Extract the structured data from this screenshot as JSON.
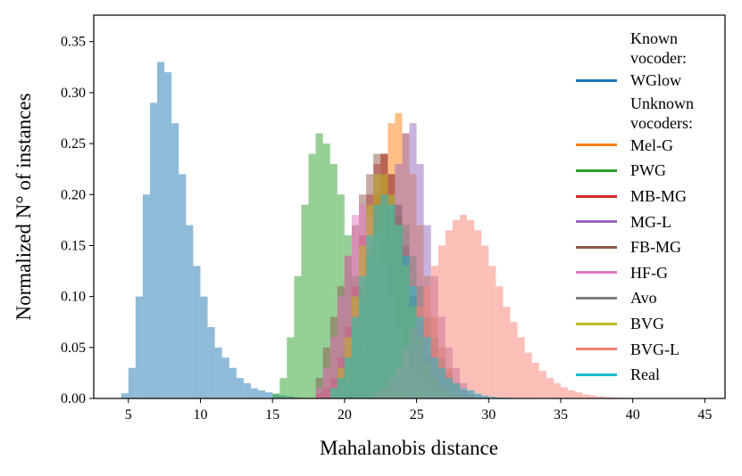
{
  "chart_data": {
    "type": "histogram",
    "xlabel": "Mahalanobis distance",
    "ylabel": "Normalized N° of instances",
    "xlim": [
      2.6,
      46.4
    ],
    "ylim": [
      0,
      0.376
    ],
    "xticks": [
      5,
      10,
      15,
      20,
      25,
      30,
      35,
      40,
      45
    ],
    "yticks": [
      {
        "value": 0,
        "label": "0.00"
      },
      0.05,
      {
        "value": 0.1,
        "label": "0.10"
      },
      0.15,
      {
        "value": 0.2,
        "label": "0.20"
      },
      0.25,
      {
        "value": 0.3,
        "label": "0.30"
      },
      0.35
    ],
    "alpha": 0.5,
    "groups": [
      {
        "title": "Known vocoder:",
        "series": [
          {
            "name": "WGlow",
            "color": "#1f77b4",
            "bins": [
              4.5,
              5,
              5.5,
              6,
              6.5,
              7,
              7.5,
              8,
              8.5,
              9,
              9.5,
              10,
              10.5,
              11,
              11.5,
              12,
              12.5,
              13,
              13.5,
              14,
              14.5,
              15,
              15.5,
              16,
              16.5,
              17
            ],
            "values": [
              0.005,
              0.03,
              0.1,
              0.2,
              0.29,
              0.33,
              0.32,
              0.27,
              0.22,
              0.17,
              0.13,
              0.1,
              0.07,
              0.05,
              0.04,
              0.03,
              0.02,
              0.015,
              0.01,
              0.008,
              0.006,
              0.004,
              0.003,
              0.002,
              0.001
            ]
          }
        ]
      },
      {
        "title": "Unknown vocoders:",
        "series": [
          {
            "name": "Mel-G",
            "color": "#ff7f0e",
            "bins": [
              19,
              19.5,
              20,
              20.5,
              21,
              21.5,
              22,
              22.5,
              23,
              23.5,
              24,
              24.5,
              25,
              25.5,
              26,
              26.5,
              27,
              27.5,
              28,
              28.5,
              29
            ],
            "values": [
              0.01,
              0.02,
              0.04,
              0.07,
              0.11,
              0.15,
              0.2,
              0.24,
              0.27,
              0.28,
              0.26,
              0.22,
              0.17,
              0.12,
              0.08,
              0.05,
              0.03,
              0.015,
              0.008,
              0.004
            ]
          },
          {
            "name": "PWG",
            "color": "#2ca02c",
            "bins": [
              15,
              15.5,
              16,
              16.5,
              17,
              17.5,
              18,
              18.5,
              19,
              19.5,
              20,
              20.5,
              21,
              21.5,
              22,
              22.5,
              23,
              23.5,
              24,
              24.5,
              25,
              25.5,
              26
            ],
            "values": [
              0.005,
              0.02,
              0.06,
              0.12,
              0.19,
              0.24,
              0.26,
              0.25,
              0.23,
              0.2,
              0.16,
              0.12,
              0.09,
              0.06,
              0.04,
              0.03,
              0.02,
              0.015,
              0.01,
              0.006,
              0.003,
              0.001
            ]
          },
          {
            "name": "MB-MG",
            "color": "#d62728",
            "bins": [
              18,
              18.5,
              19,
              19.5,
              20,
              20.5,
              21,
              21.5,
              22,
              22.5,
              23,
              23.5,
              24,
              24.5,
              25,
              25.5,
              26,
              26.5,
              27,
              27.5,
              28
            ],
            "values": [
              0.005,
              0.01,
              0.02,
              0.04,
              0.07,
              0.11,
              0.16,
              0.2,
              0.23,
              0.24,
              0.22,
              0.19,
              0.15,
              0.1,
              0.07,
              0.04,
              0.02,
              0.01,
              0.005,
              0.002
            ]
          },
          {
            "name": "MG-L",
            "color": "#9467bd",
            "bins": [
              20,
              20.5,
              21,
              21.5,
              22,
              22.5,
              23,
              23.5,
              24,
              24.5,
              25,
              25.5,
              26,
              26.5,
              27,
              27.5,
              28,
              28.5,
              29,
              29.5,
              30
            ],
            "values": [
              0.01,
              0.02,
              0.04,
              0.07,
              0.11,
              0.15,
              0.19,
              0.23,
              0.26,
              0.27,
              0.23,
              0.17,
              0.12,
              0.08,
              0.05,
              0.03,
              0.015,
              0.008,
              0.004,
              0.002
            ]
          },
          {
            "name": "FB-MG",
            "color": "#8c564b",
            "bins": [
              18,
              18.5,
              19,
              19.5,
              20,
              20.5,
              21,
              21.5,
              22,
              22.5,
              23,
              23.5,
              24,
              24.5,
              25,
              25.5,
              26,
              26.5,
              27,
              27.5,
              28
            ],
            "values": [
              0.02,
              0.05,
              0.08,
              0.11,
              0.14,
              0.17,
              0.2,
              0.22,
              0.24,
              0.24,
              0.22,
              0.18,
              0.14,
              0.1,
              0.06,
              0.04,
              0.02,
              0.01,
              0.005,
              0.002
            ]
          },
          {
            "name": "HF-G",
            "color": "#e377c2",
            "bins": [
              18,
              18.5,
              19,
              19.5,
              20,
              20.5,
              21,
              21.5,
              22,
              22.5,
              23,
              23.5,
              24,
              24.5,
              25,
              25.5,
              26,
              26.5,
              27
            ],
            "values": [
              0.01,
              0.03,
              0.06,
              0.1,
              0.14,
              0.18,
              0.19,
              0.18,
              0.16,
              0.13,
              0.1,
              0.07,
              0.05,
              0.03,
              0.02,
              0.01,
              0.005,
              0.002
            ]
          },
          {
            "name": "Avo",
            "color": "#7f7f7f",
            "bins": [
              19,
              19.5,
              20,
              20.5,
              21,
              21.5,
              22,
              22.5,
              23,
              23.5,
              24,
              24.5,
              25,
              25.5,
              26,
              26.5,
              27,
              27.5,
              28,
              28.5,
              29,
              29.5,
              30
            ],
            "values": [
              0.01,
              0.02,
              0.04,
              0.07,
              0.1,
              0.14,
              0.17,
              0.19,
              0.2,
              0.19,
              0.17,
              0.14,
              0.11,
              0.08,
              0.06,
              0.04,
              0.025,
              0.015,
              0.008,
              0.004,
              0.002,
              0.001
            ]
          },
          {
            "name": "BVG",
            "color": "#bcbd22",
            "bins": [
              19,
              19.5,
              20,
              20.5,
              21,
              21.5,
              22,
              22.5,
              23,
              23.5,
              24,
              24.5,
              25,
              25.5,
              26,
              26.5,
              27,
              27.5,
              28
            ],
            "values": [
              0.01,
              0.03,
              0.06,
              0.1,
              0.15,
              0.19,
              0.22,
              0.22,
              0.2,
              0.17,
              0.13,
              0.09,
              0.06,
              0.035,
              0.02,
              0.01,
              0.005,
              0.002
            ]
          },
          {
            "name": "BVG-L",
            "color": "#fa8072",
            "bins": [
              22,
              22.5,
              23,
              23.5,
              24,
              24.5,
              25,
              25.5,
              26,
              26.5,
              27,
              27.5,
              28,
              28.5,
              29,
              29.5,
              30,
              30.5,
              31,
              31.5,
              32,
              32.5,
              33,
              33.5,
              34,
              34.5,
              35,
              35.5,
              36,
              36.5,
              37,
              37.5,
              38,
              38.5,
              39,
              39.5,
              40
            ],
            "values": [
              0.005,
              0.01,
              0.02,
              0.03,
              0.05,
              0.07,
              0.09,
              0.11,
              0.13,
              0.15,
              0.165,
              0.175,
              0.18,
              0.175,
              0.165,
              0.15,
              0.13,
              0.11,
              0.09,
              0.075,
              0.06,
              0.045,
              0.035,
              0.027,
              0.02,
              0.015,
              0.011,
              0.008,
              0.006,
              0.004,
              0.003,
              0.002,
              0.0015,
              0.001,
              0.0008,
              0.0006
            ]
          },
          {
            "name": "Real",
            "color": "#17becf",
            "bins": [
              19,
              19.5,
              20,
              20.5,
              21,
              21.5,
              22,
              22.5,
              23,
              23.5,
              24,
              24.5,
              25,
              25.5,
              26,
              26.5,
              27,
              27.5,
              28,
              28.5,
              29,
              29.5,
              30,
              30.5,
              31,
              31.5,
              32
            ],
            "values": [
              0.01,
              0.02,
              0.04,
              0.08,
              0.12,
              0.16,
              0.19,
              0.2,
              0.19,
              0.17,
              0.14,
              0.11,
              0.08,
              0.06,
              0.04,
              0.03,
              0.02,
              0.015,
              0.01,
              0.008,
              0.005,
              0.003,
              0.002,
              0.001,
              0.001,
              0.0005
            ]
          }
        ]
      }
    ]
  }
}
